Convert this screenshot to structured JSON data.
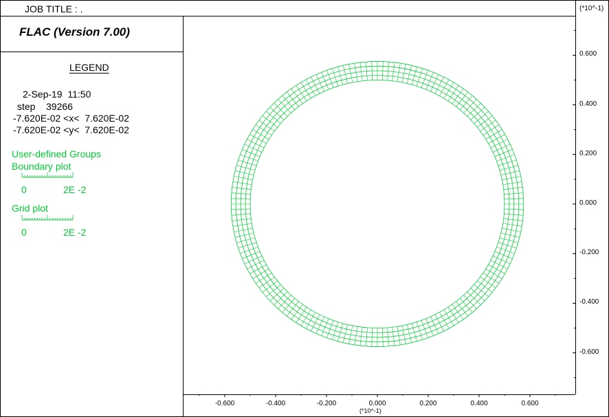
{
  "header": {
    "job_title": "JOB TITLE : .",
    "exponent_top": "(*10^-1)"
  },
  "app": {
    "title": "FLAC (Version 7.00)"
  },
  "legend": {
    "title": "LEGEND",
    "date_line": "2-Sep-19  11:50",
    "step_line": "step    39266",
    "x_range_line": "-7.620E-02 <x<  7.620E-02",
    "y_range_line": "-7.620E-02 <y<  7.620E-02",
    "group_heading": "User-defined Groups",
    "boundary_label": "Boundary plot",
    "boundary_scale": {
      "min": "0",
      "max": "2E -2"
    },
    "grid_label": "Grid plot",
    "grid_scale": {
      "min": "0",
      "max": "2E -2"
    }
  },
  "plot": {
    "x_exponent": "(*10^-1)",
    "x_ticks": [
      "-0.600",
      "-0.400",
      "-0.200",
      "0.000",
      "0.200",
      "0.400",
      "0.600"
    ],
    "y_ticks": [
      "0.600",
      "0.400",
      "0.200",
      "0.000",
      "-0.200",
      "-0.400",
      "-0.600"
    ],
    "xlim": [
      -0.762,
      0.762
    ],
    "ylim": [
      -0.762,
      0.762
    ],
    "ring": {
      "inner_radius": 0.5,
      "outer_radius": 0.575,
      "radial_zones": 4,
      "circumferential_zones": 160
    },
    "grid_color": "#00cc33"
  }
}
